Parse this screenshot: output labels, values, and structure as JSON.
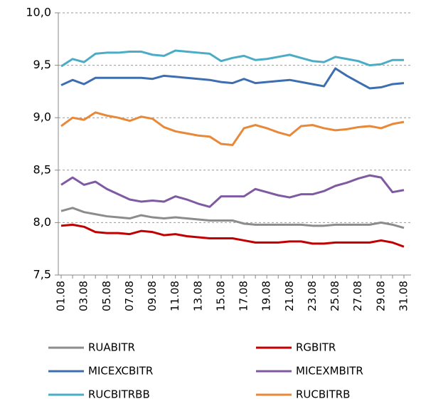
{
  "chart_data": {
    "type": "line",
    "categories": [
      "01.08",
      null,
      "03.08",
      null,
      "05.08",
      null,
      "07.08",
      null,
      "09.08",
      null,
      "11.08",
      null,
      "13.08",
      null,
      "15.08",
      null,
      "17.08",
      null,
      "19.08",
      null,
      "21.08",
      null,
      "23.08",
      null,
      "25.08",
      null,
      "27.08",
      null,
      "29.08",
      null,
      "31.08"
    ],
    "ylim": [
      7.5,
      10.0
    ],
    "yticks": [
      {
        "value": 7.5,
        "label": "7,5"
      },
      {
        "value": 8.0,
        "label": "8,0"
      },
      {
        "value": 8.5,
        "label": "8,5"
      },
      {
        "value": 9.0,
        "label": "9,0"
      },
      {
        "value": 9.5,
        "label": "9,5"
      },
      {
        "value": 10.0,
        "label": "10,0"
      }
    ],
    "grid": true,
    "legend": "bottom",
    "series": [
      {
        "name": "RUABITR",
        "color": "#8c8c8c",
        "values": [
          8.11,
          8.14,
          8.1,
          8.08,
          8.06,
          8.05,
          8.04,
          8.07,
          8.05,
          8.04,
          8.05,
          8.04,
          8.03,
          8.02,
          8.02,
          8.02,
          7.99,
          7.98,
          7.98,
          7.98,
          7.98,
          7.98,
          7.97,
          7.97,
          7.98,
          7.98,
          7.98,
          7.98,
          8.0,
          7.98,
          7.95
        ]
      },
      {
        "name": "RGBITR",
        "color": "#c00000",
        "values": [
          7.97,
          7.98,
          7.96,
          7.91,
          7.9,
          7.9,
          7.89,
          7.92,
          7.91,
          7.88,
          7.89,
          7.87,
          7.86,
          7.85,
          7.85,
          7.85,
          7.83,
          7.81,
          7.81,
          7.81,
          7.82,
          7.82,
          7.8,
          7.8,
          7.81,
          7.81,
          7.81,
          7.81,
          7.83,
          7.81,
          7.77
        ]
      },
      {
        "name": "MICEXCBITR",
        "color": "#3d6eb0",
        "values": [
          9.31,
          9.36,
          9.32,
          9.38,
          9.38,
          9.38,
          9.38,
          9.38,
          9.37,
          9.4,
          9.39,
          9.38,
          9.37,
          9.36,
          9.34,
          9.33,
          9.37,
          9.33,
          9.34,
          9.35,
          9.36,
          9.34,
          9.32,
          9.3,
          9.47,
          9.4,
          9.34,
          9.28,
          9.29,
          9.32,
          9.33
        ]
      },
      {
        "name": "MICEXMBITR",
        "color": "#7f5aa2",
        "values": [
          8.36,
          8.43,
          8.36,
          8.39,
          8.32,
          8.27,
          8.22,
          8.2,
          8.21,
          8.2,
          8.25,
          8.22,
          8.18,
          8.15,
          8.25,
          8.25,
          8.25,
          8.32,
          8.29,
          8.26,
          8.24,
          8.27,
          8.27,
          8.3,
          8.35,
          8.38,
          8.42,
          8.45,
          8.43,
          8.29,
          8.31
        ]
      },
      {
        "name": "RUCBITRBB",
        "color": "#4bacc6",
        "values": [
          9.49,
          9.56,
          9.53,
          9.61,
          9.62,
          9.62,
          9.63,
          9.63,
          9.6,
          9.59,
          9.64,
          9.63,
          9.62,
          9.61,
          9.54,
          9.57,
          9.59,
          9.55,
          9.56,
          9.58,
          9.6,
          9.57,
          9.54,
          9.53,
          9.58,
          9.56,
          9.54,
          9.5,
          9.51,
          9.55,
          9.55
        ]
      },
      {
        "name": "RUCBITRB",
        "color": "#e8893a",
        "values": [
          8.92,
          9.0,
          8.98,
          9.05,
          9.02,
          9.0,
          8.97,
          9.01,
          8.99,
          8.91,
          8.87,
          8.85,
          8.83,
          8.82,
          8.75,
          8.74,
          8.9,
          8.93,
          8.9,
          8.86,
          8.83,
          8.92,
          8.93,
          8.9,
          8.88,
          8.89,
          8.91,
          8.92,
          8.9,
          8.94,
          8.96
        ]
      }
    ]
  }
}
